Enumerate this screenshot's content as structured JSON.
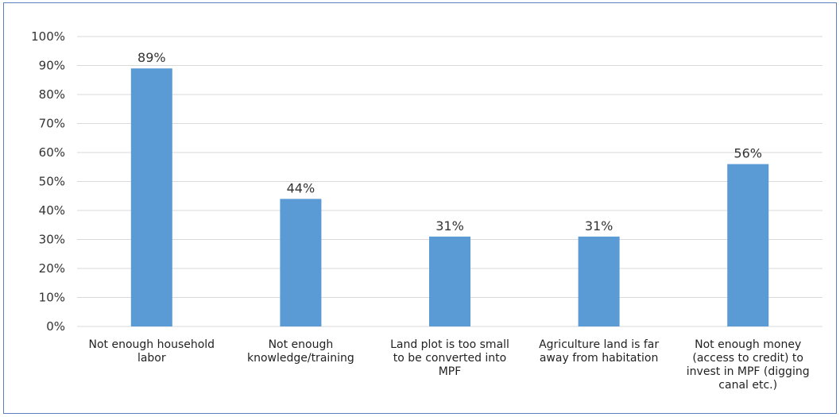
{
  "chart_data": {
    "type": "bar",
    "title": "",
    "xlabel": "",
    "ylabel": "",
    "categories": [
      [
        "Not enough household",
        "labor"
      ],
      [
        "Not enough",
        "knowledge/training"
      ],
      [
        "Land plot is too small",
        "to be converted into",
        "MPF"
      ],
      [
        "Agriculture land is far",
        "away from habitation"
      ],
      [
        "Not enough money",
        "(access to credit) to",
        "invest in MPF (digging",
        "canal etc.)"
      ]
    ],
    "values": [
      89,
      44,
      31,
      31,
      56
    ],
    "data_labels": [
      "89%",
      "44%",
      "31%",
      "31%",
      "56%"
    ],
    "ylim": [
      0,
      100
    ],
    "y_ticks": [
      0,
      10,
      20,
      30,
      40,
      50,
      60,
      70,
      80,
      90,
      100
    ],
    "y_tick_labels": [
      "0%",
      "10%",
      "20%",
      "30%",
      "40%",
      "50%",
      "60%",
      "70%",
      "80%",
      "90%",
      "100%"
    ],
    "grid": true,
    "legend": "none",
    "colors": {
      "bar": "#5b9bd5",
      "grid": "#d9d9d9",
      "frame": "#5b7fc1"
    }
  }
}
